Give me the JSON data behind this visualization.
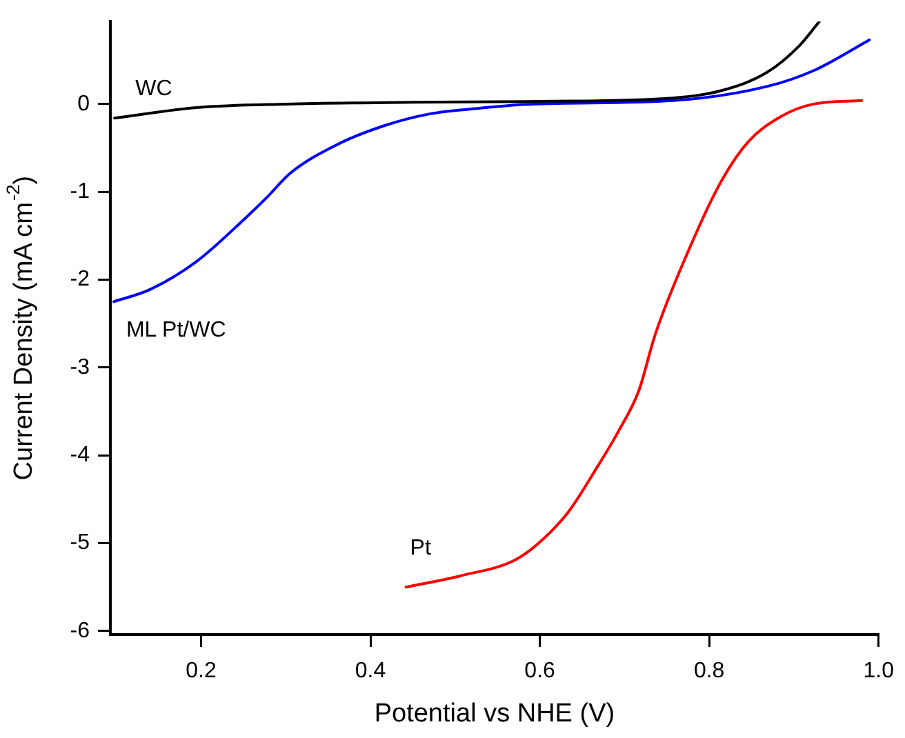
{
  "chart_data": {
    "type": "line",
    "xlabel": "Potential vs NHE (V)",
    "ylabel": "Current Density (mA cm$^{-2}$)",
    "xlim": [
      0.093,
      1.0
    ],
    "ylim": [
      -6.04,
      0.94
    ],
    "xticks": [
      0.2,
      0.4,
      0.6,
      0.8,
      {
        "value": 1.0,
        "label": "1.0"
      }
    ],
    "yticks": [
      -6,
      -5,
      -4,
      -3,
      -2,
      -1,
      0
    ],
    "grid": false,
    "legend": false,
    "marker": "none",
    "line_style": "solid",
    "series": [
      {
        "name": "WC",
        "color": "#000000",
        "x": [
          0.098,
          0.195,
          0.3,
          0.45,
          0.6,
          0.758,
          0.813,
          0.868,
          0.907,
          0.93
        ],
        "values": [
          -0.16,
          -0.04,
          0.0,
          0.02,
          0.03,
          0.07,
          0.15,
          0.36,
          0.67,
          0.94
        ]
      },
      {
        "name": "ML Pt/WC",
        "color": "#0000ff",
        "x": [
          0.097,
          0.14,
          0.195,
          0.25,
          0.278,
          0.305,
          0.361,
          0.415,
          0.471,
          0.526,
          0.592,
          0.758,
          0.868,
          0.923,
          0.989
        ],
        "values": [
          -2.25,
          -2.11,
          -1.79,
          -1.32,
          -1.06,
          -0.79,
          -0.46,
          -0.25,
          -0.11,
          -0.05,
          0.0,
          0.04,
          0.2,
          0.38,
          0.73
        ]
      },
      {
        "name": "Pt",
        "color": "#ff0000",
        "x": [
          0.442,
          0.507,
          0.571,
          0.602,
          0.634,
          0.666,
          0.692,
          0.717,
          0.736,
          0.775,
          0.813,
          0.846,
          0.885,
          0.923,
          0.98
        ],
        "values": [
          -5.5,
          -5.37,
          -5.19,
          -4.97,
          -4.64,
          -4.16,
          -3.74,
          -3.26,
          -2.63,
          -1.68,
          -0.9,
          -0.43,
          -0.14,
          0.0,
          0.04
        ]
      }
    ]
  }
}
